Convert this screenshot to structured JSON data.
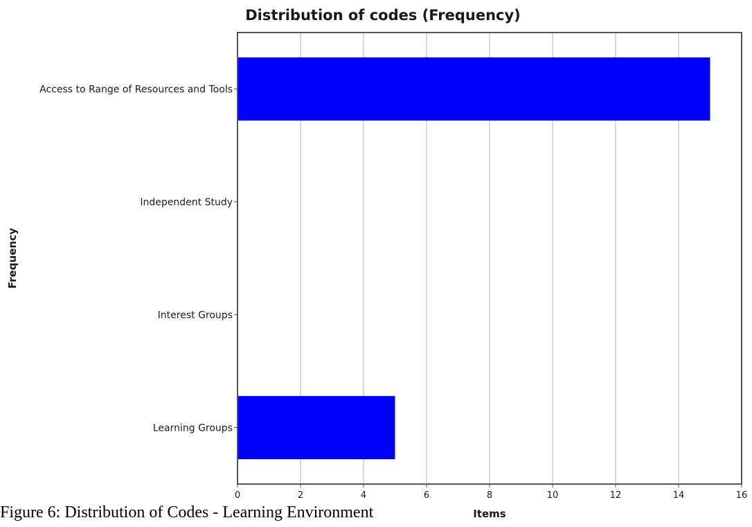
{
  "chart_data": {
    "type": "bar",
    "orientation": "horizontal",
    "title": "Distribution of codes (Frequency)",
    "xlabel": "Items",
    "ylabel": "Frequency",
    "categories": [
      "Access to Range of Resources and Tools",
      "Independent Study",
      "Interest Groups",
      "Learning Groups"
    ],
    "values": [
      15,
      0,
      0,
      5
    ],
    "xlim": [
      0,
      16
    ],
    "xticks": [
      0,
      2,
      4,
      6,
      8,
      10,
      12,
      14,
      16
    ],
    "grid": "vertical",
    "bar_color": "#0000ff",
    "grid_color": "#d9d9d9"
  },
  "caption": "Figure 6: Distribution of Codes - Learning Environment"
}
